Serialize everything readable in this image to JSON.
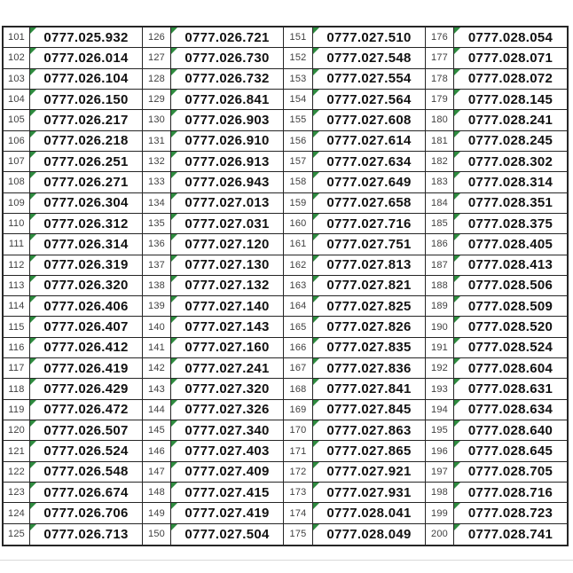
{
  "colors": {
    "table_border": "#262626",
    "flag_green": "#2e8b3f",
    "index_text": "#3f3f3f",
    "phone_text": "#111111",
    "faint_gridline": "#d9d9d9",
    "background": "#ffffff"
  },
  "table": {
    "columns": [
      {
        "rows": [
          {
            "index": "101",
            "phone": "0777.025.932"
          },
          {
            "index": "102",
            "phone": "0777.026.014"
          },
          {
            "index": "103",
            "phone": "0777.026.104"
          },
          {
            "index": "104",
            "phone": "0777.026.150"
          },
          {
            "index": "105",
            "phone": "0777.026.217"
          },
          {
            "index": "106",
            "phone": "0777.026.218"
          },
          {
            "index": "107",
            "phone": "0777.026.251"
          },
          {
            "index": "108",
            "phone": "0777.026.271"
          },
          {
            "index": "109",
            "phone": "0777.026.304"
          },
          {
            "index": "110",
            "phone": "0777.026.312"
          },
          {
            "index": "111",
            "phone": "0777.026.314"
          },
          {
            "index": "112",
            "phone": "0777.026.319"
          },
          {
            "index": "113",
            "phone": "0777.026.320"
          },
          {
            "index": "114",
            "phone": "0777.026.406"
          },
          {
            "index": "115",
            "phone": "0777.026.407"
          },
          {
            "index": "116",
            "phone": "0777.026.412"
          },
          {
            "index": "117",
            "phone": "0777.026.419"
          },
          {
            "index": "118",
            "phone": "0777.026.429"
          },
          {
            "index": "119",
            "phone": "0777.026.472"
          },
          {
            "index": "120",
            "phone": "0777.026.507"
          },
          {
            "index": "121",
            "phone": "0777.026.524"
          },
          {
            "index": "122",
            "phone": "0777.026.548"
          },
          {
            "index": "123",
            "phone": "0777.026.674"
          },
          {
            "index": "124",
            "phone": "0777.026.706"
          },
          {
            "index": "125",
            "phone": "0777.026.713"
          }
        ]
      },
      {
        "rows": [
          {
            "index": "126",
            "phone": "0777.026.721"
          },
          {
            "index": "127",
            "phone": "0777.026.730"
          },
          {
            "index": "128",
            "phone": "0777.026.732"
          },
          {
            "index": "129",
            "phone": "0777.026.841"
          },
          {
            "index": "130",
            "phone": "0777.026.903"
          },
          {
            "index": "131",
            "phone": "0777.026.910"
          },
          {
            "index": "132",
            "phone": "0777.026.913"
          },
          {
            "index": "133",
            "phone": "0777.026.943"
          },
          {
            "index": "134",
            "phone": "0777.027.013"
          },
          {
            "index": "135",
            "phone": "0777.027.031"
          },
          {
            "index": "136",
            "phone": "0777.027.120"
          },
          {
            "index": "137",
            "phone": "0777.027.130"
          },
          {
            "index": "138",
            "phone": "0777.027.132"
          },
          {
            "index": "139",
            "phone": "0777.027.140"
          },
          {
            "index": "140",
            "phone": "0777.027.143"
          },
          {
            "index": "141",
            "phone": "0777.027.160"
          },
          {
            "index": "142",
            "phone": "0777.027.241"
          },
          {
            "index": "143",
            "phone": "0777.027.320"
          },
          {
            "index": "144",
            "phone": "0777.027.326"
          },
          {
            "index": "145",
            "phone": "0777.027.340"
          },
          {
            "index": "146",
            "phone": "0777.027.403"
          },
          {
            "index": "147",
            "phone": "0777.027.409"
          },
          {
            "index": "148",
            "phone": "0777.027.415"
          },
          {
            "index": "149",
            "phone": "0777.027.419"
          },
          {
            "index": "150",
            "phone": "0777.027.504"
          }
        ]
      },
      {
        "rows": [
          {
            "index": "151",
            "phone": "0777.027.510"
          },
          {
            "index": "152",
            "phone": "0777.027.548"
          },
          {
            "index": "153",
            "phone": "0777.027.554"
          },
          {
            "index": "154",
            "phone": "0777.027.564"
          },
          {
            "index": "155",
            "phone": "0777.027.608"
          },
          {
            "index": "156",
            "phone": "0777.027.614"
          },
          {
            "index": "157",
            "phone": "0777.027.634"
          },
          {
            "index": "158",
            "phone": "0777.027.649"
          },
          {
            "index": "159",
            "phone": "0777.027.658"
          },
          {
            "index": "160",
            "phone": "0777.027.716"
          },
          {
            "index": "161",
            "phone": "0777.027.751"
          },
          {
            "index": "162",
            "phone": "0777.027.813"
          },
          {
            "index": "163",
            "phone": "0777.027.821"
          },
          {
            "index": "164",
            "phone": "0777.027.825"
          },
          {
            "index": "165",
            "phone": "0777.027.826"
          },
          {
            "index": "166",
            "phone": "0777.027.835"
          },
          {
            "index": "167",
            "phone": "0777.027.836"
          },
          {
            "index": "168",
            "phone": "0777.027.841"
          },
          {
            "index": "169",
            "phone": "0777.027.845"
          },
          {
            "index": "170",
            "phone": "0777.027.863"
          },
          {
            "index": "171",
            "phone": "0777.027.865"
          },
          {
            "index": "172",
            "phone": "0777.027.921"
          },
          {
            "index": "173",
            "phone": "0777.027.931"
          },
          {
            "index": "174",
            "phone": "0777.028.041"
          },
          {
            "index": "175",
            "phone": "0777.028.049"
          }
        ]
      },
      {
        "rows": [
          {
            "index": "176",
            "phone": "0777.028.054"
          },
          {
            "index": "177",
            "phone": "0777.028.071"
          },
          {
            "index": "178",
            "phone": "0777.028.072"
          },
          {
            "index": "179",
            "phone": "0777.028.145"
          },
          {
            "index": "180",
            "phone": "0777.028.241"
          },
          {
            "index": "181",
            "phone": "0777.028.245"
          },
          {
            "index": "182",
            "phone": "0777.028.302"
          },
          {
            "index": "183",
            "phone": "0777.028.314"
          },
          {
            "index": "184",
            "phone": "0777.028.351"
          },
          {
            "index": "185",
            "phone": "0777.028.375"
          },
          {
            "index": "186",
            "phone": "0777.028.405"
          },
          {
            "index": "187",
            "phone": "0777.028.413"
          },
          {
            "index": "188",
            "phone": "0777.028.506"
          },
          {
            "index": "189",
            "phone": "0777.028.509"
          },
          {
            "index": "190",
            "phone": "0777.028.520"
          },
          {
            "index": "191",
            "phone": "0777.028.524"
          },
          {
            "index": "192",
            "phone": "0777.028.604"
          },
          {
            "index": "193",
            "phone": "0777.028.631"
          },
          {
            "index": "194",
            "phone": "0777.028.634"
          },
          {
            "index": "195",
            "phone": "0777.028.640"
          },
          {
            "index": "196",
            "phone": "0777.028.645"
          },
          {
            "index": "197",
            "phone": "0777.028.705"
          },
          {
            "index": "198",
            "phone": "0777.028.716"
          },
          {
            "index": "199",
            "phone": "0777.028.723"
          },
          {
            "index": "200",
            "phone": "0777.028.741"
          }
        ]
      }
    ]
  }
}
